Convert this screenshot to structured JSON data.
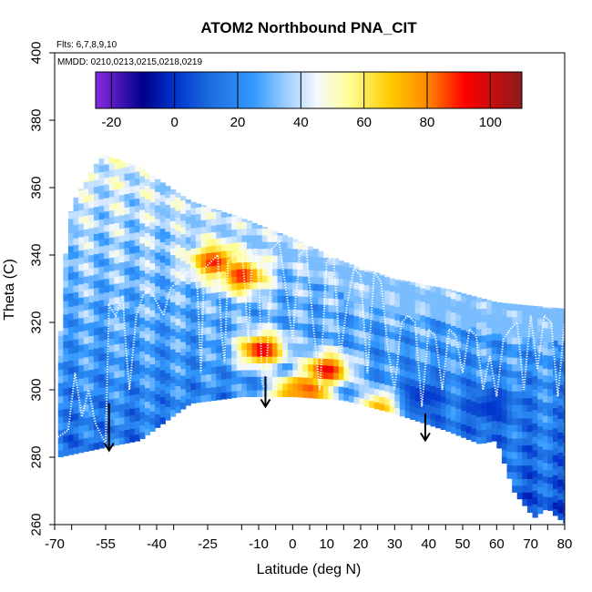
{
  "chart_data": {
    "type": "heatmap",
    "title": "ATOM2 Northbound PNA_CIT",
    "flights_note": "Flts: 6,7,8,9,10",
    "dates_note": "MMDD: 0210,0213,0215,0218,0219",
    "xlabel": "Latitude (deg N)",
    "ylabel": "Theta (C)",
    "xlim": [
      -70,
      80
    ],
    "ylim": [
      260,
      400
    ],
    "x_ticks": [
      {
        "value": -70,
        "label": "-70"
      },
      {
        "value": -55,
        "label": "-55"
      },
      {
        "value": -40,
        "label": "-40"
      },
      {
        "value": -25,
        "label": "-25"
      },
      {
        "value": -10,
        "label": "-10"
      },
      {
        "value": 0,
        "label": "0"
      },
      {
        "value": 10,
        "label": "10"
      },
      {
        "value": 20,
        "label": "20"
      },
      {
        "value": 30,
        "label": "30"
      },
      {
        "value": 40,
        "label": "40"
      },
      {
        "value": 50,
        "label": "50"
      },
      {
        "value": 60,
        "label": "60"
      },
      {
        "value": 70,
        "label": "70"
      },
      {
        "value": 80,
        "label": "80"
      }
    ],
    "y_ticks": [
      260,
      280,
      300,
      320,
      340,
      360,
      380,
      400
    ],
    "colorbar": {
      "min": -25,
      "max": 110,
      "ticks": [
        -20,
        0,
        20,
        40,
        60,
        80,
        100
      ],
      "stops": [
        {
          "value": -25,
          "color": "#8a2be2"
        },
        {
          "value": -10,
          "color": "#00008b"
        },
        {
          "value": 0,
          "color": "#0033cc"
        },
        {
          "value": 12,
          "color": "#1e6fe0"
        },
        {
          "value": 25,
          "color": "#3399ff"
        },
        {
          "value": 35,
          "color": "#99ccff"
        },
        {
          "value": 45,
          "color": "#f4f8ff"
        },
        {
          "value": 55,
          "color": "#ffff99"
        },
        {
          "value": 68,
          "color": "#ffcc00"
        },
        {
          "value": 80,
          "color": "#ff8800"
        },
        {
          "value": 92,
          "color": "#ff0000"
        },
        {
          "value": 110,
          "color": "#8b1a1a"
        }
      ]
    },
    "upper_boundary": [
      [
        -56,
        370
      ],
      [
        -45,
        366
      ],
      [
        -30,
        356
      ],
      [
        -15,
        351
      ],
      [
        0,
        345
      ],
      [
        15,
        338
      ],
      [
        30,
        333
      ],
      [
        45,
        330
      ],
      [
        60,
        326
      ],
      [
        70,
        325
      ],
      [
        81,
        324
      ]
    ],
    "lower_boundary": [
      [
        -69,
        280
      ],
      [
        -55,
        283
      ],
      [
        -45,
        285
      ],
      [
        -30,
        296
      ],
      [
        -15,
        298
      ],
      [
        0,
        298
      ],
      [
        15,
        297
      ],
      [
        30,
        293
      ],
      [
        45,
        288
      ],
      [
        55,
        284
      ],
      [
        60,
        285
      ],
      [
        65,
        270
      ],
      [
        71,
        262
      ],
      [
        75,
        265
      ],
      [
        78,
        262
      ],
      [
        81,
        260
      ]
    ],
    "left_edge": [
      [
        -69,
        280
      ],
      [
        -68,
        330
      ],
      [
        -65,
        355
      ],
      [
        -56,
        370
      ]
    ],
    "features": [
      {
        "name": "tropical-high-ozone",
        "x": [
          -9,
          4,
          10
        ],
        "y": [
          312,
          300,
          306
        ],
        "value": 95
      },
      {
        "name": "upper-tropical-pocket",
        "x": [
          -23,
          -15
        ],
        "y": [
          338,
          334
        ],
        "value": 90
      },
      {
        "name": "lower-tropical-tongue",
        "x": [
          0,
          26
        ],
        "y": [
          298,
          295
        ],
        "value": 75
      },
      {
        "name": "midlatitude-low",
        "x": [
          38,
          58
        ],
        "y": [
          298,
          295
        ],
        "value": 0
      }
    ],
    "flight_track": [
      [
        -69,
        286
      ],
      [
        -66,
        288
      ],
      [
        -64,
        305
      ],
      [
        -62,
        292
      ],
      [
        -60,
        300
      ],
      [
        -58,
        290
      ],
      [
        -55,
        284
      ],
      [
        -54,
        325
      ],
      [
        -52,
        322
      ],
      [
        -50,
        328
      ],
      [
        -49,
        312
      ],
      [
        -48,
        300
      ],
      [
        -46,
        322
      ],
      [
        -44,
        328
      ],
      [
        -42,
        330
      ],
      [
        -40,
        326
      ],
      [
        -38,
        322
      ],
      [
        -36,
        330
      ],
      [
        -34,
        332
      ],
      [
        -32,
        334
      ],
      [
        -30,
        336
      ],
      [
        -28,
        330
      ],
      [
        -27,
        305
      ],
      [
        -26,
        336
      ],
      [
        -24,
        338
      ],
      [
        -22,
        340
      ],
      [
        -21,
        318
      ],
      [
        -20,
        308
      ],
      [
        -19,
        338
      ],
      [
        -17,
        340
      ],
      [
        -15,
        342
      ],
      [
        -14,
        330
      ],
      [
        -13,
        314
      ],
      [
        -12,
        340
      ],
      [
        -11,
        342
      ],
      [
        -10,
        336
      ],
      [
        -9,
        302
      ],
      [
        -8,
        300
      ],
      [
        -6,
        342
      ],
      [
        -4,
        344
      ],
      [
        -2,
        330
      ],
      [
        0,
        315
      ],
      [
        2,
        340
      ],
      [
        4,
        342
      ],
      [
        6,
        320
      ],
      [
        8,
        300
      ],
      [
        10,
        338
      ],
      [
        12,
        340
      ],
      [
        14,
        310
      ],
      [
        16,
        325
      ],
      [
        18,
        336
      ],
      [
        20,
        334
      ],
      [
        22,
        305
      ],
      [
        24,
        335
      ],
      [
        26,
        332
      ],
      [
        28,
        312
      ],
      [
        30,
        300
      ],
      [
        32,
        320
      ],
      [
        34,
        322
      ],
      [
        36,
        320
      ],
      [
        38,
        295
      ],
      [
        40,
        318
      ],
      [
        42,
        316
      ],
      [
        44,
        300
      ],
      [
        46,
        318
      ],
      [
        48,
        316
      ],
      [
        50,
        305
      ],
      [
        52,
        318
      ],
      [
        54,
        316
      ],
      [
        56,
        300
      ],
      [
        58,
        310
      ],
      [
        60,
        298
      ],
      [
        62,
        315
      ],
      [
        64,
        318
      ],
      [
        66,
        320
      ],
      [
        68,
        300
      ],
      [
        70,
        322
      ],
      [
        72,
        306
      ],
      [
        74,
        322
      ],
      [
        76,
        320
      ],
      [
        78,
        298
      ],
      [
        80,
        320
      ]
    ],
    "arrows": [
      {
        "x": -54,
        "y_from": 296,
        "y_to": 282
      },
      {
        "x": -8,
        "y_from": 304,
        "y_to": 295
      },
      {
        "x": 39,
        "y_from": 293,
        "y_to": 285
      }
    ]
  }
}
